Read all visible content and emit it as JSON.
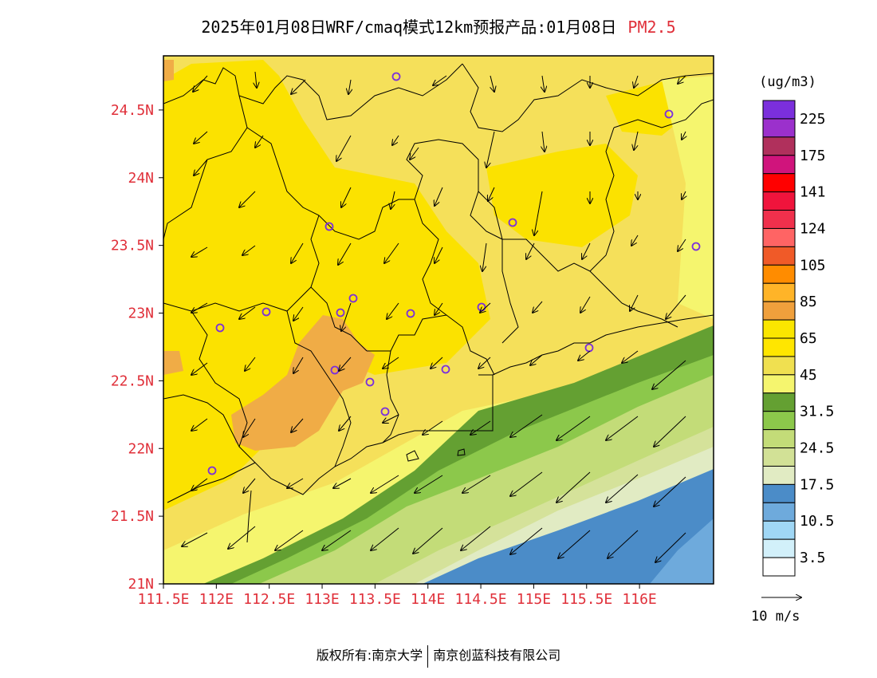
{
  "header": {
    "title": "2025年01月08日WRF/cmaq模式12km预报产品:01月08日",
    "variable": "PM2.5"
  },
  "map": {
    "lat_ticks": [
      "24.5N",
      "24N",
      "23.5N",
      "23N",
      "22.5N",
      "22N",
      "21.5N",
      "21N"
    ],
    "lon_ticks": [
      "111.5E",
      "112E",
      "112.5E",
      "113E",
      "113.5E",
      "114E",
      "114.5E",
      "115E",
      "115.5E",
      "116E"
    ],
    "extent": {
      "lon": [
        111.5,
        116.7
      ],
      "lat": [
        21.0,
        24.9
      ]
    },
    "tick_color": "#e0303a"
  },
  "legend": {
    "unit": "(ug/m3)",
    "colors": [
      "#7b2fdc",
      "#9b30cc",
      "#b0305c",
      "#d0147c",
      "#ff0000",
      "#f0143c",
      "#f0304c",
      "#ff6464",
      "#f05a28",
      "#ff8c00",
      "#ffb428",
      "#f0a03c",
      "#fae600",
      "#ffe600",
      "#f0e050",
      "#f5f56e",
      "#64a032",
      "#8cc84b",
      "#c3dc78",
      "#d2e196",
      "#e1ebc3",
      "#4b8cc8",
      "#6eaadc",
      "#a0d7f5",
      "#d2f0fa",
      "#ffffff"
    ],
    "labels": [
      "225",
      "175",
      "141",
      "124",
      "105",
      "85",
      "65",
      "45",
      "31.5",
      "24.5",
      "17.5",
      "10.5",
      "3.5"
    ]
  },
  "wind_scale": {
    "label": "10 m/s"
  },
  "footer": {
    "left": "版权所有:南京大学",
    "right": "南京创蓝科技有限公司"
  }
}
